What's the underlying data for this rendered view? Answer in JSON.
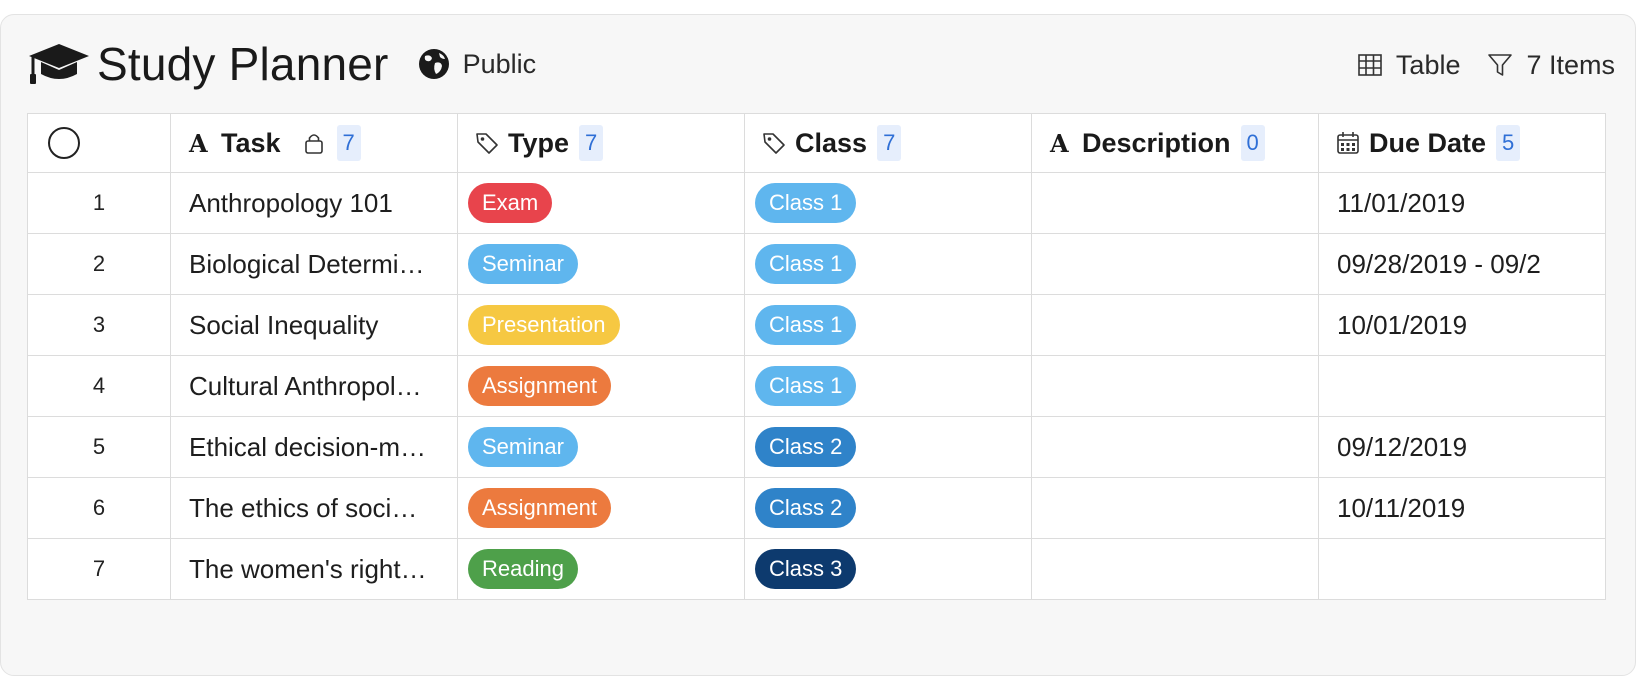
{
  "header": {
    "title": "Study Planner",
    "title_icon": "graduation-cap-icon",
    "visibility_icon": "globe-icon",
    "visibility_label": "Public",
    "view_label": "Table",
    "filter_label": "7 Items"
  },
  "columns": {
    "task": {
      "label": "Task",
      "count": "7"
    },
    "type": {
      "label": "Type",
      "count": "7"
    },
    "class": {
      "label": "Class",
      "count": "7"
    },
    "description": {
      "label": "Description",
      "count": "0"
    },
    "due": {
      "label": "Due Date",
      "count": "5"
    }
  },
  "rows": [
    {
      "num": "1",
      "task": "Anthropology 101",
      "type": "Exam",
      "type_color": "#e8444c",
      "class": "Class 1",
      "class_color": "#5fb6ee",
      "description": "",
      "due": "11/01/2019"
    },
    {
      "num": "2",
      "task": "Biological Determi…",
      "type": "Seminar",
      "type_color": "#5fb6ee",
      "class": "Class 1",
      "class_color": "#5fb6ee",
      "description": "",
      "due": "09/28/2019 - 09/2"
    },
    {
      "num": "3",
      "task": "Social Inequality",
      "type": "Presentation",
      "type_color": "#f6c842",
      "class": "Class 1",
      "class_color": "#5fb6ee",
      "description": "",
      "due": "10/01/2019"
    },
    {
      "num": "4",
      "task": "Cultural Anthropol…",
      "type": "Assignment",
      "type_color": "#ec7a3e",
      "class": "Class 1",
      "class_color": "#5fb6ee",
      "description": "",
      "due": ""
    },
    {
      "num": "5",
      "task": "Ethical decision-m…",
      "type": "Seminar",
      "type_color": "#5fb6ee",
      "class": "Class 2",
      "class_color": "#2f83c9",
      "description": "",
      "due": "09/12/2019"
    },
    {
      "num": "6",
      "task": "The ethics of soci…",
      "type": "Assignment",
      "type_color": "#ec7a3e",
      "class": "Class 2",
      "class_color": "#2f83c9",
      "description": "",
      "due": "10/11/2019"
    },
    {
      "num": "7",
      "task": "The women's right…",
      "type": "Reading",
      "type_color": "#4ea04a",
      "class": "Class 3",
      "class_color": "#0d3a6e",
      "description": "",
      "due": ""
    }
  ]
}
